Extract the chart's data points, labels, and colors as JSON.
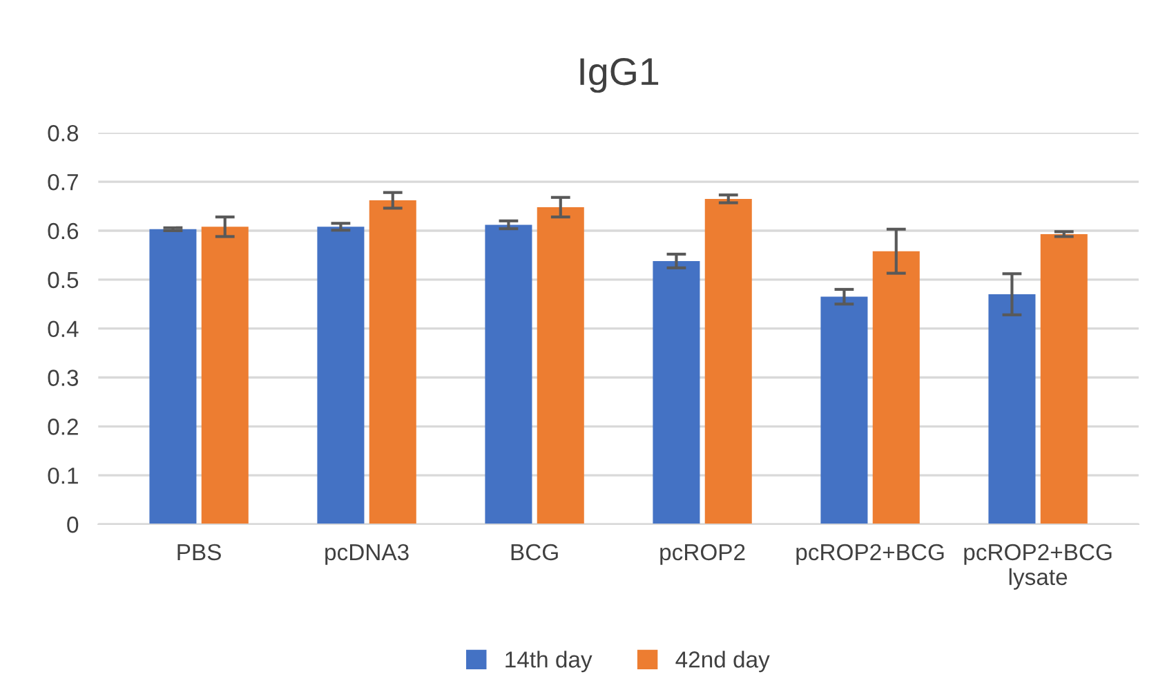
{
  "chart_data": {
    "type": "bar",
    "title": "IgG1",
    "categories": [
      "PBS",
      "pcDNA3",
      "BCG",
      "pcROP2",
      "pcROP2+BCG",
      "pcROP2+BCG\nlysate"
    ],
    "series": [
      {
        "name": "14th day",
        "color": "#4472c4",
        "values": [
          0.603,
          0.608,
          0.612,
          0.538,
          0.465,
          0.47
        ],
        "errors": [
          0.003,
          0.007,
          0.008,
          0.014,
          0.015,
          0.042
        ]
      },
      {
        "name": "42nd day",
        "color": "#ed7d31",
        "values": [
          0.608,
          0.662,
          0.648,
          0.665,
          0.558,
          0.593
        ],
        "errors": [
          0.02,
          0.016,
          0.02,
          0.008,
          0.045,
          0.005
        ]
      }
    ],
    "ylim": [
      0,
      0.8
    ],
    "yticks": [
      0,
      0.1,
      0.2,
      0.3,
      0.4,
      0.5,
      0.6,
      0.7,
      0.8
    ],
    "grid": "y",
    "legend": "bottom"
  }
}
